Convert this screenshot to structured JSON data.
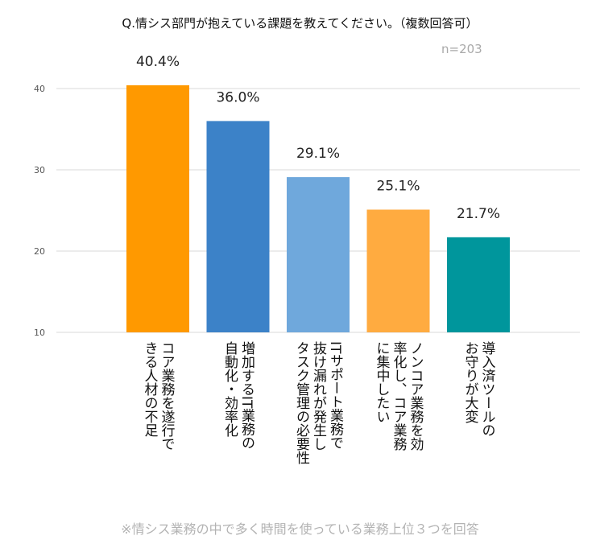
{
  "title": "Q.情シス部門が抱えている課題を教えてください。（複数回答可）",
  "sample_size": "n=203",
  "footnote": "※情シス業務の中で多く時間を使っている業務上位３つを回答",
  "chart_data": {
    "type": "bar",
    "title": "Q.情シス部門が抱えている課題を教えてください。（複数回答可）",
    "xlabel": "",
    "ylabel": "",
    "ylim": [
      10,
      40
    ],
    "yticks": [
      10,
      20,
      30,
      40
    ],
    "grid": true,
    "legend": "none",
    "categories": [
      "コア業務を遂行できる人材の不足",
      "増加するIT業務の自動化・効率化",
      "ITサポート業務で抜け漏れが発生しタスク管理の必要性",
      "ノンコア業務を効率化し、コア業務に集中したい",
      "導入済ツールのお守りが大変"
    ],
    "category_lines": [
      [
        "コア業務を遂行で",
        "きる人材の不足"
      ],
      [
        "増加するIT業務の",
        "自動化・効率化"
      ],
      [
        "ITサポート業務で",
        "抜け漏れが発生し",
        "タスク管理の必要性"
      ],
      [
        "ノンコア業務を効",
        "率化し、コア業務",
        "に集中したい"
      ],
      [
        "導入済ツールの",
        "お守りが大変"
      ]
    ],
    "values": [
      40.4,
      36.0,
      29.1,
      25.1,
      21.7
    ],
    "value_labels": [
      "40.4%",
      "36.0%",
      "29.1%",
      "25.1%",
      "21.7%"
    ],
    "colors": [
      "#FF9900",
      "#3C82C8",
      "#6FA8DC",
      "#FFAB40",
      "#00969C"
    ]
  }
}
